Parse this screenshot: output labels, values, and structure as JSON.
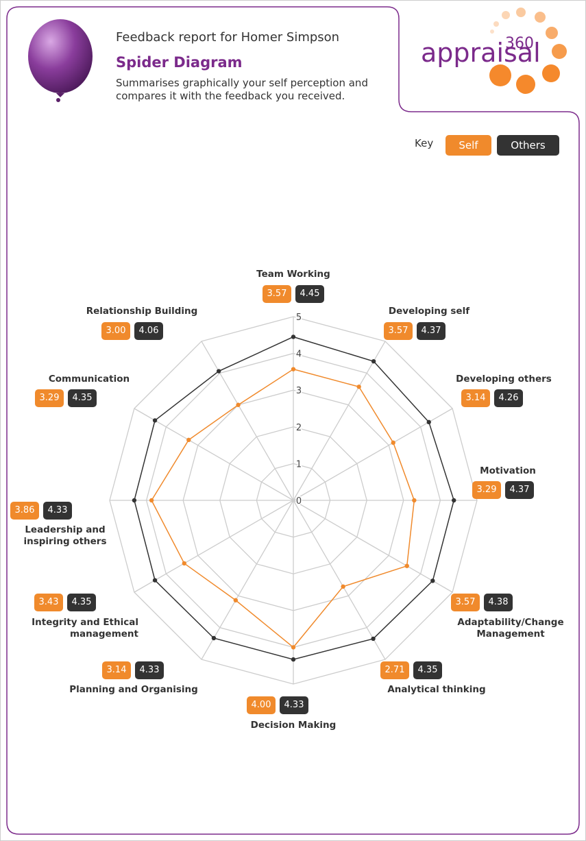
{
  "header": {
    "report_for": "Feedback report for Homer Simpson",
    "title": "Spider Diagram",
    "subtitle": "Summarises graphically your self perception and compares it with the feedback you received.",
    "logo": "appraisal",
    "logo_sup": "360"
  },
  "key_label": "Key",
  "chart_data": {
    "type": "radar",
    "categories": [
      "Team Working",
      "Developing self",
      "Developing others",
      "Motivation",
      "Adaptability/Change Management",
      "Analytical thinking",
      "Decision Making",
      "Planning and Organising",
      "Integrity and Ethical management",
      "Leadership and inspiring others",
      "Communication",
      "Relationship Building"
    ],
    "series": [
      {
        "name": "Self",
        "color": "#f08a2c",
        "values": [
          3.57,
          3.57,
          3.14,
          3.29,
          3.57,
          2.71,
          4.0,
          3.14,
          3.43,
          3.86,
          3.29,
          3.0
        ],
        "value_labels": [
          "3.57",
          "3.57",
          "3.14",
          "3.29",
          "3.57",
          "2.71",
          "4.00",
          "3.14",
          "3.43",
          "3.86",
          "3.29",
          "3.00"
        ]
      },
      {
        "name": "Others",
        "color": "#333333",
        "values": [
          4.45,
          4.37,
          4.26,
          4.37,
          4.38,
          4.35,
          4.33,
          4.33,
          4.35,
          4.33,
          4.35,
          4.06
        ],
        "value_labels": [
          "4.45",
          "4.37",
          "4.26",
          "4.37",
          "4.38",
          "4.35",
          "4.33",
          "4.33",
          "4.35",
          "4.33",
          "4.35",
          "4.06"
        ]
      }
    ],
    "ylim": [
      0,
      5
    ],
    "yticks": [
      0,
      1,
      2,
      3,
      4,
      5
    ],
    "grid": true
  }
}
